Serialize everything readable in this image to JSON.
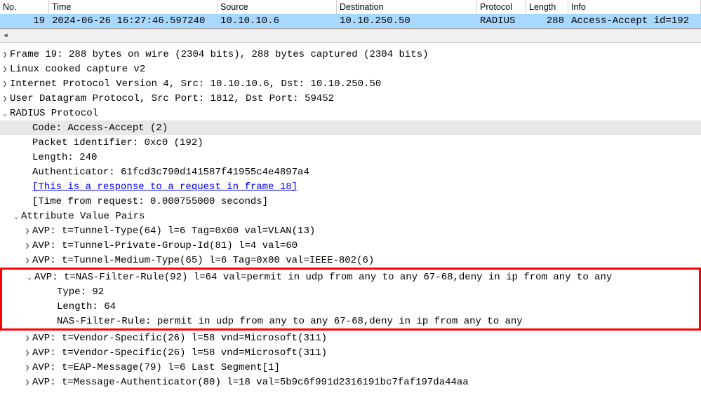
{
  "colors": {
    "selected_row_bg": "#a8d8ff",
    "sel_line_bg": "#e8e8e8",
    "highlight_border": "#ff0000",
    "link_color": "#0000ee",
    "border_gray": "#d0d0d0",
    "text": "#000000",
    "bg": "#ffffff"
  },
  "columns": {
    "no": "No.",
    "time": "Time",
    "source": "Source",
    "destination": "Destination",
    "protocol": "Protocol",
    "length": "Length",
    "info": "Info"
  },
  "packet": {
    "no": "19",
    "time": "2024-06-26 16:27:46.597240",
    "source": "10.10.10.6",
    "destination": "10.10.250.50",
    "protocol": "RADIUS",
    "length": "288",
    "info": "Access-Accept id=192"
  },
  "tree": {
    "frame": "Frame 19: 288 bytes on wire (2304 bits), 288 bytes captured (2304 bits)",
    "linux": "Linux cooked capture v2",
    "ip": "Internet Protocol Version 4, Src: 10.10.10.6, Dst: 10.10.250.50",
    "udp": "User Datagram Protocol, Src Port: 1812, Dst Port: 59452",
    "radius": "RADIUS Protocol",
    "code": "Code: Access-Accept (2)",
    "pkt_id": "Packet identifier: 0xc0 (192)",
    "len": "Length: 240",
    "auth": "Authenticator: 61fcd3c790d141587f41955c4e4897a4",
    "resp_link": "[This is a response to a request in frame 18]",
    "time_from": "[Time from request: 0.000755000 seconds]",
    "avps": "Attribute Value Pairs",
    "avp1": "AVP: t=Tunnel-Type(64) l=6 Tag=0x00 val=VLAN(13)",
    "avp2": "AVP: t=Tunnel-Private-Group-Id(81) l=4 val=60",
    "avp3": "AVP: t=Tunnel-Medium-Type(65) l=6 Tag=0x00 val=IEEE-802(6)",
    "avp4": "AVP: t=NAS-Filter-Rule(92) l=64 val=permit in udp from any to any 67-68,deny in ip from any to any",
    "avp4_type": "Type: 92",
    "avp4_len": "Length: 64",
    "avp4_rule": "NAS-Filter-Rule: permit in udp from any to any 67-68,deny in ip from any to any",
    "avp5": "AVP: t=Vendor-Specific(26) l=58 vnd=Microsoft(311)",
    "avp6": "AVP: t=Vendor-Specific(26) l=58 vnd=Microsoft(311)",
    "avp7": "AVP: t=EAP-Message(79) l=6 Last Segment[1]",
    "avp8": "AVP: t=Message-Authenticator(80) l=18 val=5b9c6f991d2316191bc7faf197da44aa"
  },
  "glyphs": {
    "collapsed": "❯",
    "expanded": "⌄",
    "scroll_left": "◀"
  }
}
